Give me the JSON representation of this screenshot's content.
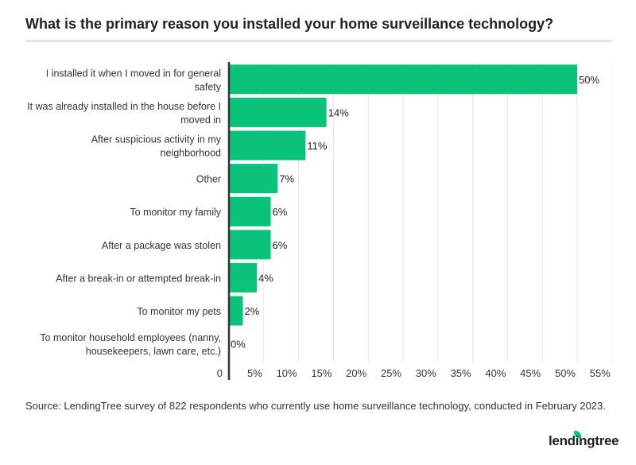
{
  "title": "What is the primary reason you installed your home surveillance technology?",
  "source": "Source: LendingTree survey of 822 respondents who currently use home surveillance technology, conducted in February 2023.",
  "logo": "lendingtree",
  "colors": {
    "bar": "#0bc27a",
    "grid": "#e6e6e6",
    "axis": "#333333"
  },
  "chart_data": {
    "type": "bar",
    "orientation": "horizontal",
    "title": "What is the primary reason you installed your home surveillance technology?",
    "categories": [
      [
        "I installed it when I moved in for general",
        "safety"
      ],
      [
        "It was already installed in the house before I",
        "moved in"
      ],
      [
        "After suspicious activity in my",
        "neighborhood"
      ],
      [
        "Other"
      ],
      [
        "To monitor my family"
      ],
      [
        "After a package was stolen"
      ],
      [
        "After a break-in or attempted break-in"
      ],
      [
        "To monitor my pets"
      ],
      [
        "To monitor household employees (nanny,",
        "housekeepers, lawn care, etc.)"
      ]
    ],
    "values": [
      50,
      14,
      11,
      7,
      6,
      6,
      4,
      2,
      0
    ],
    "value_labels": [
      "50%",
      "14%",
      "11%",
      "7%",
      "6%",
      "6%",
      "4%",
      "2%",
      "0%"
    ],
    "xlim": [
      0,
      55
    ],
    "xticks": [
      0,
      5,
      10,
      15,
      20,
      25,
      30,
      35,
      40,
      45,
      50,
      55
    ],
    "xtick_labels": [
      "0",
      "5%",
      "10%",
      "15%",
      "20%",
      "25%",
      "30%",
      "35%",
      "40%",
      "45%",
      "50%",
      "55%"
    ],
    "grid": true
  }
}
